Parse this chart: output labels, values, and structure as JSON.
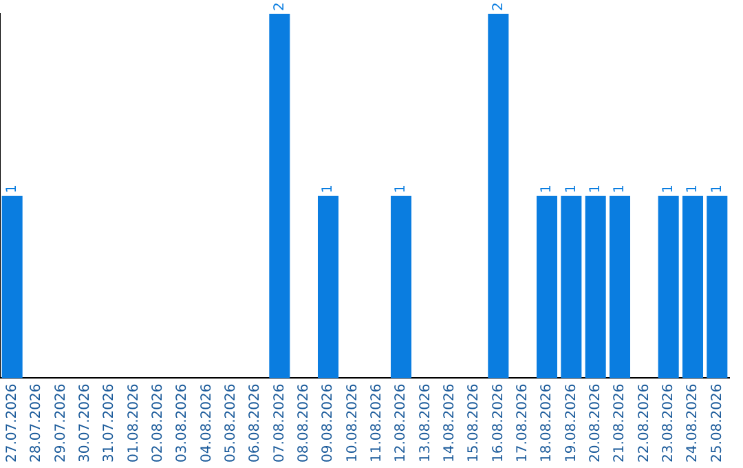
{
  "chart_data": {
    "type": "bar",
    "categories": [
      "27.07.2026",
      "28.07.2026",
      "29.07.2026",
      "30.07.2026",
      "31.07.2026",
      "01.08.2026",
      "02.08.2026",
      "03.08.2026",
      "04.08.2026",
      "05.08.2026",
      "06.08.2026",
      "07.08.2026",
      "08.08.2026",
      "09.08.2026",
      "10.08.2026",
      "11.08.2026",
      "12.08.2026",
      "13.08.2026",
      "14.08.2026",
      "15.08.2026",
      "16.08.2026",
      "17.08.2026",
      "18.08.2026",
      "19.08.2026",
      "20.08.2026",
      "21.08.2026",
      "22.08.2026",
      "23.08.2026",
      "24.08.2026",
      "25.08.2026"
    ],
    "values": [
      1,
      0,
      0,
      0,
      0,
      0,
      0,
      0,
      0,
      0,
      0,
      2,
      0,
      1,
      0,
      0,
      1,
      0,
      0,
      0,
      2,
      0,
      1,
      1,
      1,
      1,
      0,
      1,
      1,
      1
    ],
    "value_labels": [
      "1",
      null,
      null,
      null,
      null,
      null,
      null,
      null,
      null,
      null,
      null,
      "2",
      null,
      "1",
      null,
      null,
      "1",
      null,
      null,
      null,
      "2",
      null,
      "1",
      "1",
      "1",
      "1",
      null,
      "1",
      "1",
      "1"
    ],
    "color": "#0a7de0",
    "grid": false,
    "legend": false,
    "tick_labels": "x"
  }
}
